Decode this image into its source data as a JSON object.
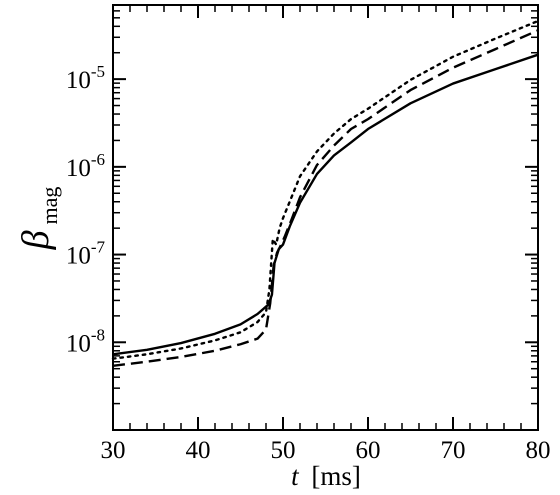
{
  "chart_data": {
    "type": "line",
    "title": "",
    "xlabel_var": "t",
    "xlabel_unit": "[ms]",
    "ylabel_var": "β",
    "ylabel_sub": "mag",
    "xlim": [
      30,
      80
    ],
    "ylim": [
      1e-09,
      7e-05
    ],
    "yscale": "log",
    "x_ticks": [
      30,
      40,
      50,
      60,
      70,
      80
    ],
    "x_tick_labels": [
      "30",
      "40",
      "50",
      "60",
      "70",
      "80"
    ],
    "y_ticks": [
      {
        "value": 1e-08,
        "base": "10",
        "exp": "-8"
      },
      {
        "value": 1e-07,
        "base": "10",
        "exp": "-7"
      },
      {
        "value": 1e-06,
        "base": "10",
        "exp": "-6"
      },
      {
        "value": 1e-05,
        "base": "10",
        "exp": "-5"
      }
    ],
    "grid": false,
    "legend": "none",
    "series": [
      {
        "style": "solid",
        "x": [
          30,
          34,
          38,
          42,
          45,
          47,
          48.3,
          48.7,
          49.0,
          49.5,
          50.0,
          50.8,
          52,
          54,
          56,
          58,
          60,
          65,
          70,
          75,
          80
        ],
        "y": [
          7.3e-09,
          8.2e-09,
          9.8e-09,
          1.25e-08,
          1.6e-08,
          2.1e-08,
          2.7e-08,
          3.5e-08,
          8e-08,
          1.15e-07,
          1.3e-07,
          2.1e-07,
          3.9e-07,
          8.3e-07,
          1.35e-06,
          1.9e-06,
          2.7e-06,
          5.3e-06,
          8.9e-06,
          1.3e-05,
          1.9e-05
        ]
      },
      {
        "style": "dashed",
        "x": [
          30,
          34,
          38,
          42,
          45,
          47,
          48.0,
          48.5,
          48.9,
          49.3,
          49.7,
          50.2,
          51,
          52,
          54,
          56,
          58,
          60,
          65,
          70,
          75,
          80
        ],
        "y": [
          5.4e-09,
          6e-09,
          6.8e-09,
          8e-09,
          9.5e-09,
          1.1e-08,
          1.4e-08,
          2.8e-08,
          7.5e-08,
          1.05e-07,
          1.25e-07,
          1.6e-07,
          2.5e-07,
          4.5e-07,
          1.05e-06,
          1.75e-06,
          2.7e-06,
          3.5e-06,
          7.5e-06,
          1.35e-05,
          2.2e-05,
          3.6e-05
        ]
      },
      {
        "style": "dotted",
        "x": [
          30,
          34,
          38,
          42,
          45,
          47,
          48.0,
          48.4,
          48.8,
          49.2,
          49.6,
          50,
          51,
          52,
          54,
          56,
          58,
          60,
          65,
          70,
          75,
          80
        ],
        "y": [
          6.5e-09,
          7.3e-09,
          8.5e-09,
          1.05e-08,
          1.3e-08,
          1.7e-08,
          2.2e-08,
          4e-08,
          1.5e-07,
          1.3e-07,
          2e-07,
          2.6e-07,
          4.5e-07,
          7.8e-07,
          1.5e-06,
          2.4e-06,
          3.5e-06,
          4.6e-06,
          9.8e-06,
          1.8e-05,
          2.9e-05,
          4.6e-05
        ]
      }
    ]
  }
}
